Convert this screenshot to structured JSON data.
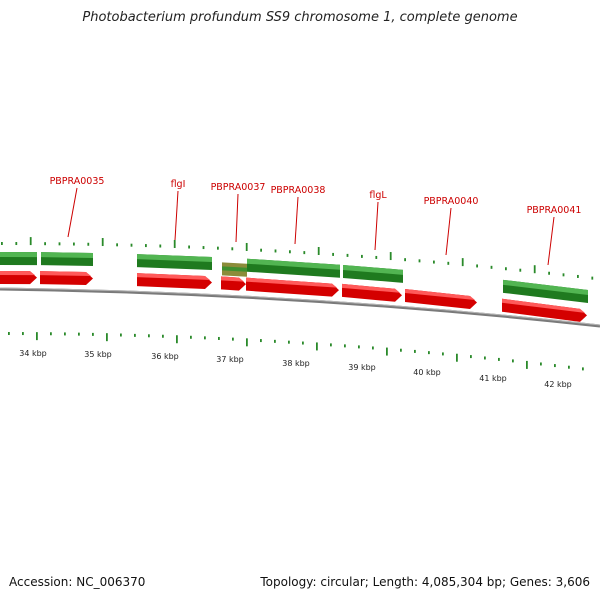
{
  "title": "Photobacterium profundum SS9 chromosome 1, complete genome",
  "footer": {
    "accession": "Accession: NC_006370",
    "summary": "Topology: circular; Length: 4,085,304 bp; Genes: 3,606"
  },
  "colors": {
    "backbone": "#808080",
    "gene_green": "#2f8f2f",
    "gene_red": "#e01010",
    "tick": "#2a8a2a",
    "label": "#cc0000",
    "label_line": "#cc0000"
  },
  "kbp_labels": [
    "34 kbp",
    "35 kbp",
    "36 kbp",
    "37 kbp",
    "38 kbp",
    "39 kbp",
    "40 kbp",
    "41 kbp",
    "42 kbp"
  ],
  "gene_labels": [
    "PBPRA0035",
    "flgI",
    "PBPRA0037",
    "PBPRA0038",
    "flgL",
    "PBPRA0040",
    "PBPRA0041"
  ]
}
